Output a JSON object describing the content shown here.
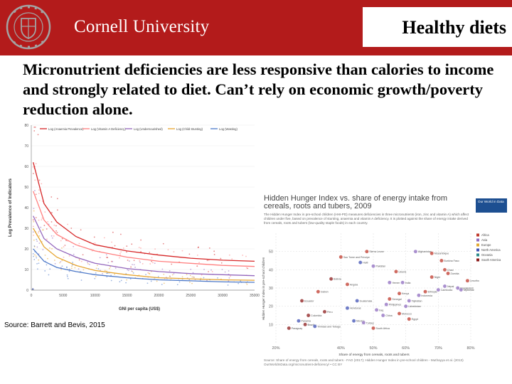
{
  "brand": {
    "name": "Cornell University",
    "seal_text": "CORNELL UNIVERSITY FOUNDED A.D. 1865"
  },
  "slide": {
    "tag": "Healthy diets",
    "headline": "Micronutrient deficiencies are less responsive than calories to income and strongly related to diet. Can’t rely on economic growth/poverty reduction alone.",
    "source": "Source: Barrett and Bevis, 2015"
  },
  "colors": {
    "header": "#b31b1b",
    "seal": "#a3a3a3"
  },
  "chart_data": [
    {
      "type": "scatter",
      "title": "",
      "xlabel": "GNI per capita (US$)",
      "ylabel": "Log Prevalence of Indicators",
      "xlim": [
        0,
        35000
      ],
      "ylim": [
        0,
        80
      ],
      "x_ticks": [
        "0",
        "5000",
        "10000",
        "15000",
        "20000",
        "25000",
        "30000",
        "35000"
      ],
      "y_ticks": [
        "0",
        "10",
        "20",
        "30",
        "40",
        "50",
        "60",
        "70",
        "80"
      ],
      "legend_position": "top",
      "series": [
        {
          "name": "Log (Anaemia Prevalence)",
          "color": "#d62728",
          "curve": [
            [
              300,
              62
            ],
            [
              2000,
              42
            ],
            [
              4000,
              33
            ],
            [
              7000,
              26
            ],
            [
              10000,
              22
            ],
            [
              15000,
              19
            ],
            [
              20000,
              17
            ],
            [
              25000,
              15.5
            ],
            [
              30000,
              14.5
            ],
            [
              35000,
              14
            ]
          ]
        },
        {
          "name": "Log (Vitamin A Deficiency)",
          "color": "#ff8080",
          "curve": [
            [
              300,
              48
            ],
            [
              2000,
              34
            ],
            [
              4000,
              27
            ],
            [
              7000,
              22
            ],
            [
              10000,
              19
            ],
            [
              15000,
              16
            ],
            [
              20000,
              14
            ],
            [
              25000,
              13
            ],
            [
              30000,
              12
            ],
            [
              35000,
              11.5
            ]
          ]
        },
        {
          "name": "Log (Undernourished)",
          "color": "#9467bd",
          "curve": [
            [
              300,
              36
            ],
            [
              2000,
              25
            ],
            [
              4000,
              20
            ],
            [
              7000,
              16
            ],
            [
              10000,
              13
            ],
            [
              15000,
              10.5
            ],
            [
              20000,
              9
            ],
            [
              25000,
              8
            ],
            [
              30000,
              7.5
            ],
            [
              35000,
              7
            ]
          ]
        },
        {
          "name": "Log (Child Stunting)",
          "color": "#e6a430",
          "curve": [
            [
              300,
              30
            ],
            [
              2000,
              21
            ],
            [
              4000,
              16
            ],
            [
              7000,
              12
            ],
            [
              10000,
              9.5
            ],
            [
              15000,
              7.5
            ],
            [
              20000,
              6
            ],
            [
              25000,
              5.5
            ],
            [
              30000,
              5
            ],
            [
              35000,
              4.8
            ]
          ]
        },
        {
          "name": "Log (Wasting)",
          "color": "#4c78c8",
          "curve": [
            [
              300,
              20
            ],
            [
              2000,
              14
            ],
            [
              4000,
              11
            ],
            [
              7000,
              9
            ],
            [
              10000,
              7.5
            ],
            [
              15000,
              6
            ],
            [
              20000,
              5
            ],
            [
              25000,
              4.5
            ],
            [
              30000,
              4
            ],
            [
              35000,
              3.8
            ]
          ]
        }
      ]
    },
    {
      "type": "scatter",
      "title": "Hidden Hunger Index vs. share of energy intake from cereals, roots and tubers, 2009",
      "description": "The Hidden Hunger Index in pre-school children (HHI-PD) measures deficiencies in three micronutrients (iron, zinc and vitamin A) which affect children under five, based on prevalence of stunting, anaemia and vitamin A deficiency. It is plotted against the share of energy intake derived from cereals, roots and tubers (low-quality staple foods) in each country.",
      "xlabel": "Share of energy from cereals, roots and tubers",
      "ylabel": "Hidden Hunger Index in pre-school children",
      "xlim": [
        20,
        80
      ],
      "ylim": [
        0,
        60
      ],
      "x_ticks": [
        "20%",
        "40%",
        "50%",
        "60%",
        "70%",
        "80%"
      ],
      "y_ticks": [
        "10",
        "20",
        "30",
        "40",
        "50"
      ],
      "legend_position": "right",
      "logo": "Our World in Data",
      "source": "Source: Share of energy from cereals, roots and tubers - FAO (2017); Hidden Hunger Index in pre-school children - Muthayya et al. (2013)",
      "license": "OurWorldInData.org/micronutrient-deficiency/ • CC BY",
      "regions": [
        {
          "name": "Africa",
          "color": "#c0392b"
        },
        {
          "name": "Asia",
          "color": "#8e6bbf"
        },
        {
          "name": "Europe",
          "color": "#e0a830"
        },
        {
          "name": "North America",
          "color": "#3f51b5"
        },
        {
          "name": "Oceania",
          "color": "#2e8b8b"
        },
        {
          "name": "South America",
          "color": "#8b1a1a"
        }
      ],
      "points": [
        {
          "label": "Afghanistan",
          "x": 63,
          "y": 50,
          "region": "Asia"
        },
        {
          "label": "Sierra Leone",
          "x": 48,
          "y": 50,
          "region": "Africa"
        },
        {
          "label": "Mozambique",
          "x": 68,
          "y": 49,
          "region": "Africa"
        },
        {
          "label": "Sao Tome and Principe",
          "x": 40,
          "y": 47,
          "region": "Africa"
        },
        {
          "label": "Burkina Faso",
          "x": 71,
          "y": 45,
          "region": "Africa"
        },
        {
          "label": "Haiti",
          "x": 46,
          "y": 44,
          "region": "North America"
        },
        {
          "label": "Pakistan",
          "x": 50,
          "y": 42,
          "region": "Asia"
        },
        {
          "label": "Liberia",
          "x": 57,
          "y": 39,
          "region": "Africa"
        },
        {
          "label": "Chad",
          "x": 72,
          "y": 40,
          "region": "Africa"
        },
        {
          "label": "Zambia",
          "x": 73,
          "y": 38,
          "region": "Africa"
        },
        {
          "label": "Bolivia",
          "x": 37,
          "y": 35,
          "region": "South America"
        },
        {
          "label": "Niger",
          "x": 68,
          "y": 36,
          "region": "Africa"
        },
        {
          "label": "Lesotho",
          "x": 79,
          "y": 34,
          "region": "Africa"
        },
        {
          "label": "Yemen",
          "x": 55,
          "y": 33,
          "region": "Asia"
        },
        {
          "label": "Angola",
          "x": 42,
          "y": 32,
          "region": "Africa"
        },
        {
          "label": "Bangladesh",
          "x": 76,
          "y": 30,
          "region": "Asia"
        },
        {
          "label": "Ethiopia",
          "x": 66,
          "y": 28,
          "region": "Africa"
        },
        {
          "label": "India",
          "x": 59,
          "y": 33,
          "region": "Asia"
        },
        {
          "label": "Nepal",
          "x": 72,
          "y": 31,
          "region": "Asia"
        },
        {
          "label": "Cambodia",
          "x": 70,
          "y": 29,
          "region": "Asia"
        },
        {
          "label": "Gabon",
          "x": 33,
          "y": 28,
          "region": "Africa"
        },
        {
          "label": "Kenya",
          "x": 58,
          "y": 27,
          "region": "Africa"
        },
        {
          "label": "Myanmar",
          "x": 77,
          "y": 29,
          "region": "Asia"
        },
        {
          "label": "Indonesia",
          "x": 64,
          "y": 26,
          "region": "Asia"
        },
        {
          "label": "Senegal",
          "x": 55,
          "y": 24,
          "region": "Africa"
        },
        {
          "label": "Tajikistan",
          "x": 61,
          "y": 23,
          "region": "Asia"
        },
        {
          "label": "Ecuador",
          "x": 28,
          "y": 23,
          "region": "South America"
        },
        {
          "label": "Philippines",
          "x": 54,
          "y": 21,
          "region": "Asia"
        },
        {
          "label": "Guatemala",
          "x": 45,
          "y": 23,
          "region": "North America"
        },
        {
          "label": "Uzbekistan",
          "x": 60,
          "y": 20,
          "region": "Asia"
        },
        {
          "label": "Iraq",
          "x": 51,
          "y": 18,
          "region": "Asia"
        },
        {
          "label": "Honduras",
          "x": 42,
          "y": 19,
          "region": "North America"
        },
        {
          "label": "Peru",
          "x": 35,
          "y": 17,
          "region": "South America"
        },
        {
          "label": "Morocco",
          "x": 58,
          "y": 16,
          "region": "Africa"
        },
        {
          "label": "Colombia",
          "x": 30,
          "y": 15,
          "region": "South America"
        },
        {
          "label": "Egypt",
          "x": 61,
          "y": 13,
          "region": "Africa"
        },
        {
          "label": "China",
          "x": 53,
          "y": 15,
          "region": "Asia"
        },
        {
          "label": "Mexico",
          "x": 44,
          "y": 12,
          "region": "North America"
        },
        {
          "label": "Panama",
          "x": 27,
          "y": 12,
          "region": "North America"
        },
        {
          "label": "Brazil",
          "x": 29,
          "y": 10,
          "region": "South America"
        },
        {
          "label": "Trinidad and Tobago",
          "x": 32,
          "y": 9,
          "region": "North America"
        },
        {
          "label": "Paraguay",
          "x": 24,
          "y": 8,
          "region": "South America"
        },
        {
          "label": "South Africa",
          "x": 50,
          "y": 8,
          "region": "Africa"
        },
        {
          "label": "Turkey",
          "x": 47,
          "y": 11,
          "region": "Asia"
        }
      ]
    }
  ]
}
